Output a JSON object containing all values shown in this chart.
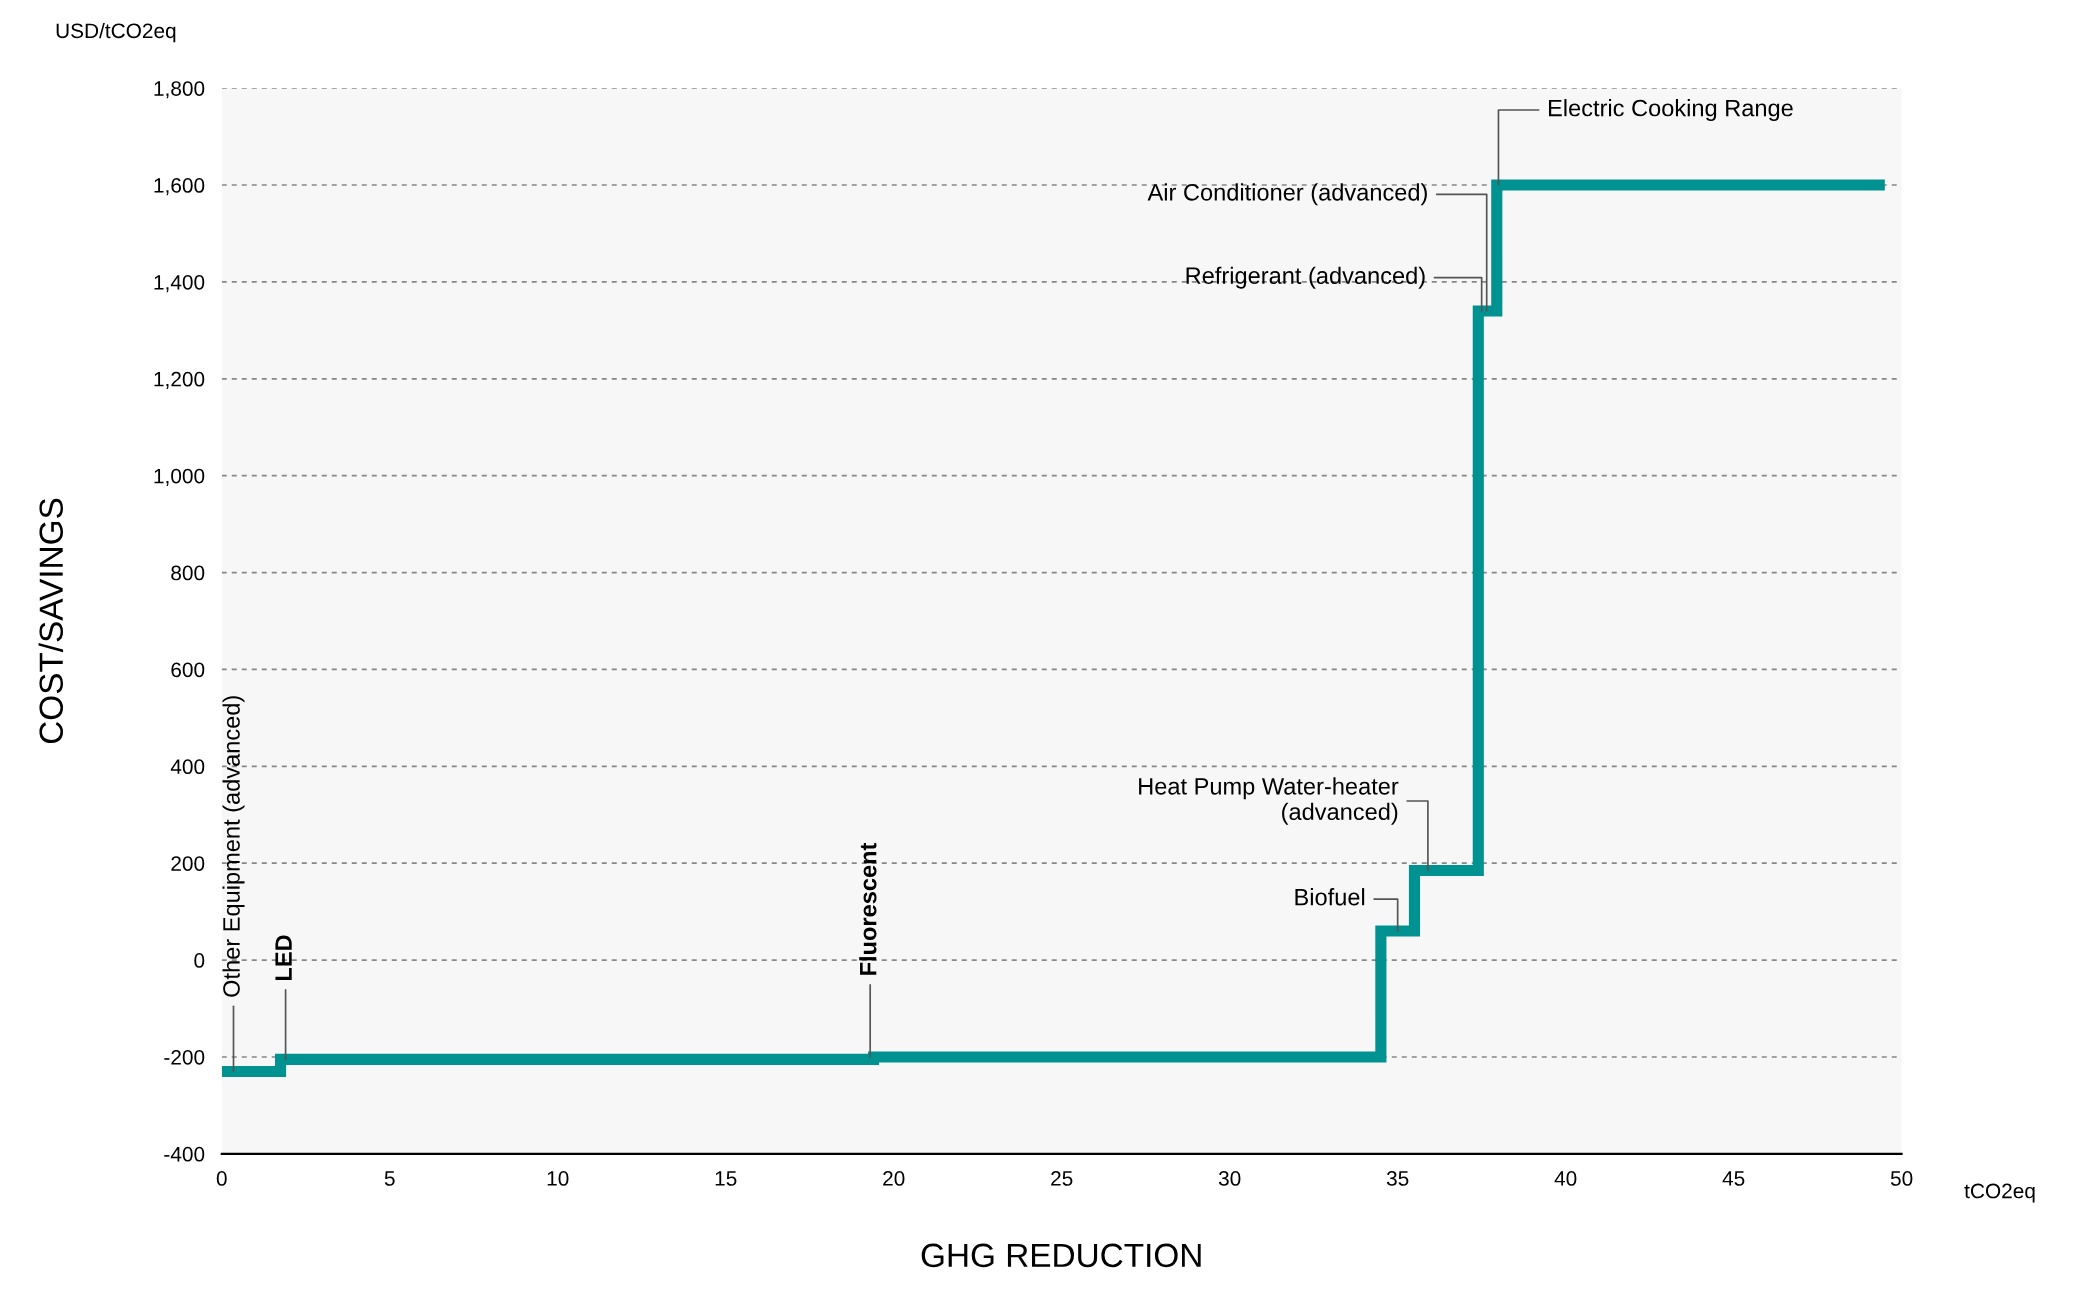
{
  "chart_data": {
    "type": "step",
    "xlabel": "GHG REDUCTION",
    "ylabel": "COST/SAVINGS",
    "x": [
      0,
      1.75,
      19.4,
      34.5,
      35.5,
      37.4,
      37.95,
      49.5
    ],
    "series": [
      {
        "color": "#009191",
        "values": [
          -230,
          -205,
          -200,
          60,
          185,
          1340,
          1600,
          1600
        ]
      }
    ],
    "xlim": [
      0,
      50
    ],
    "xticks": [
      0,
      5,
      10,
      15,
      20,
      25,
      30,
      35,
      40,
      45,
      50
    ],
    "ylim": [
      -400,
      1800
    ],
    "yticks": [
      {
        "value": -400,
        "label": "-400"
      },
      {
        "value": -200,
        "label": "-200"
      },
      0,
      200,
      400,
      600,
      800,
      {
        "value": 1000,
        "label": "1,000"
      },
      {
        "value": 1200,
        "label": "1,200"
      },
      {
        "value": 1400,
        "label": "1,400"
      },
      {
        "value": 1600,
        "label": "1,600"
      },
      {
        "value": 1800,
        "label": "1,800"
      }
    ],
    "grid": "y",
    "line_style": "solid",
    "marker": "none",
    "legend": false,
    "annotations": [
      "USD/tCO2eq",
      "tCO2eq",
      {
        "text": "Other Equipment (advanced)",
        "x": 0.35,
        "y": -230
      },
      {
        "text": "LED",
        "x": 1.9,
        "y": -205
      },
      {
        "text": "Fluorescent",
        "x": 19.3,
        "y": -200
      },
      {
        "text": "Biofuel",
        "x": 35.0,
        "y": 60
      },
      {
        "text": "Heat Pump Water-heater\n(advanced)",
        "x": 35.9,
        "y": 185
      },
      {
        "text": "Refrigerant (advanced)",
        "x": 37.5,
        "y": 1340
      },
      {
        "text": "Air Conditioner (advanced)",
        "x": 37.65,
        "y": 1340
      },
      {
        "text": "Electric Cooking Range",
        "x": 38.0,
        "y": 1600
      }
    ]
  }
}
